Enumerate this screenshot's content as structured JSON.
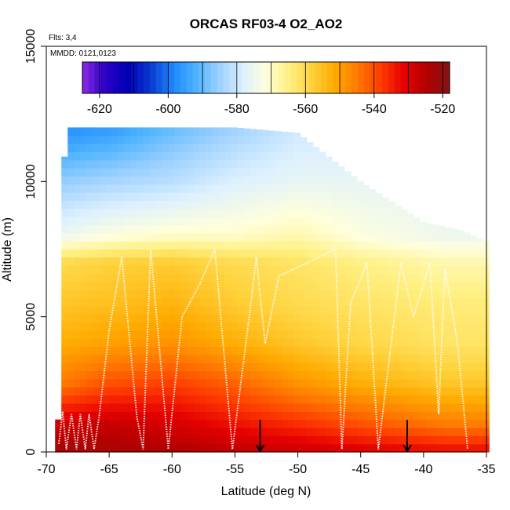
{
  "chart_data": {
    "type": "heatmap",
    "title": "ORCAS RF03-4 O2_AO2",
    "annotations": {
      "flights": "Flts: 3,4",
      "dates": "MMDD: 0121,0123"
    },
    "xlabel": "Latitude (deg N)",
    "ylabel": "Altitude (m)",
    "xlim": [
      -70,
      -35
    ],
    "ylim": [
      0,
      15000
    ],
    "xticks": [
      -70,
      -65,
      -60,
      -55,
      -50,
      -45,
      -40,
      -35
    ],
    "yticks": [
      0,
      5000,
      10000,
      15000
    ],
    "colorbar": {
      "range": [
        -625,
        -518
      ],
      "ticks": [
        -620,
        -600,
        -580,
        -560,
        -540,
        -520
      ],
      "colors": [
        "#8B2BE2",
        "#2A00C8",
        "#0000B4",
        "#0A3CD2",
        "#1E8CFF",
        "#50B4FF",
        "#A0D2FF",
        "#DCF0FF",
        "#FFFFDC",
        "#FFF082",
        "#FFD23C",
        "#FFAA00",
        "#FF7800",
        "#FF3C00",
        "#E60000",
        "#B40000",
        "#821414"
      ]
    },
    "profile_tops": [
      {
        "lat": -69.0,
        "alt": 1200
      },
      {
        "lat": -68.5,
        "alt": 12000
      },
      {
        "lat": -65.0,
        "alt": 12000
      },
      {
        "lat": -60.0,
        "alt": 12000
      },
      {
        "lat": -55.0,
        "alt": 12000
      },
      {
        "lat": -50.0,
        "alt": 11800
      },
      {
        "lat": -45.0,
        "alt": 10000
      },
      {
        "lat": -40.0,
        "alt": 8500
      },
      {
        "lat": -37.0,
        "alt": 8200
      },
      {
        "lat": -36.0,
        "alt": 8000
      },
      {
        "lat": -35.0,
        "alt": 7800
      }
    ],
    "field_anchors": [
      {
        "alt": 0,
        "values": [
          -522,
          -523,
          -524,
          -526,
          -528,
          -530,
          -532
        ]
      },
      {
        "alt": 1000,
        "values": [
          -528,
          -527,
          -529,
          -533,
          -536,
          -540,
          -545
        ]
      },
      {
        "alt": 2500,
        "values": [
          -545,
          -540,
          -538,
          -542,
          -548,
          -552,
          -556
        ]
      },
      {
        "alt": 4000,
        "values": [
          -552,
          -550,
          -548,
          -552,
          -556,
          -559,
          -562
        ]
      },
      {
        "alt": 5500,
        "values": [
          -556,
          -555,
          -553,
          -557,
          -560,
          -562,
          -564
        ]
      },
      {
        "alt": 7000,
        "values": [
          -560,
          -558,
          -557,
          -560,
          -562,
          -565,
          -568
        ]
      },
      {
        "alt": 8000,
        "values": [
          -575,
          -572,
          -570,
          -570,
          -568,
          -572,
          -575
        ]
      },
      {
        "alt": 10000,
        "values": [
          -586,
          -584,
          -582,
          -578,
          -576,
          -576,
          -576
        ]
      },
      {
        "alt": 12000,
        "values": [
          -598,
          -596,
          -590,
          -585,
          -580,
          -580,
          -580
        ]
      }
    ],
    "field_anchor_lats": [
      -69,
      -65,
      -60,
      -55,
      -50,
      -45,
      -38
    ],
    "flight_track": [
      [
        -69.0,
        300
      ],
      [
        -68.7,
        1500
      ],
      [
        -68.4,
        100
      ],
      [
        -68.0,
        1400
      ],
      [
        -67.6,
        100
      ],
      [
        -67.3,
        1400
      ],
      [
        -66.9,
        100
      ],
      [
        -66.6,
        1400
      ],
      [
        -66.2,
        100
      ],
      [
        -65.8,
        1300
      ],
      [
        -65.0,
        4500
      ],
      [
        -64.0,
        7200
      ],
      [
        -62.8,
        1300
      ],
      [
        -62.3,
        100
      ],
      [
        -61.7,
        7500
      ],
      [
        -60.3,
        100
      ],
      [
        -59.2,
        5000
      ],
      [
        -57.8,
        6200
      ],
      [
        -56.6,
        7500
      ],
      [
        -55.2,
        100
      ],
      [
        -54.0,
        4500
      ],
      [
        -53.3,
        7200
      ],
      [
        -52.6,
        4000
      ],
      [
        -51.5,
        6500
      ],
      [
        -47.0,
        7500
      ],
      [
        -46.5,
        100
      ],
      [
        -45.8,
        5500
      ],
      [
        -44.5,
        7000
      ],
      [
        -43.6,
        100
      ],
      [
        -41.8,
        7000
      ],
      [
        -40.8,
        5000
      ],
      [
        -39.5,
        7000
      ],
      [
        -38.8,
        1400
      ],
      [
        -38.3,
        6800
      ],
      [
        -37.3,
        4000
      ],
      [
        -36.5,
        100
      ]
    ],
    "markers": [
      {
        "lat": -53.0,
        "alt": 600
      },
      {
        "lat": -41.3,
        "alt": 600
      }
    ]
  }
}
